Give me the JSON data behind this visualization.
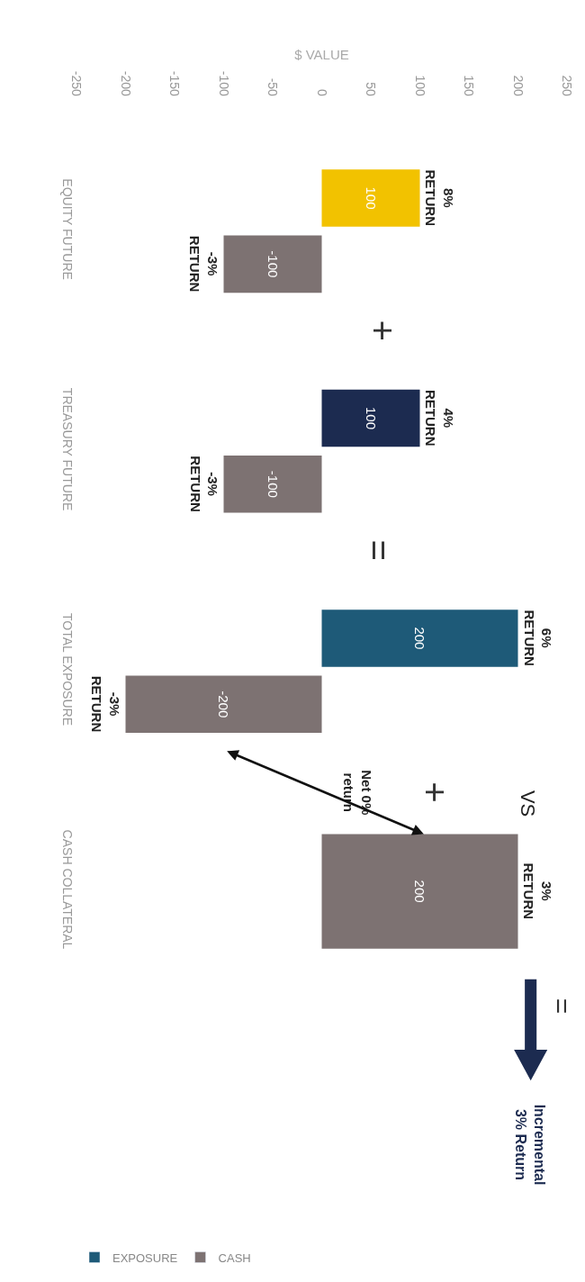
{
  "chart_data": {
    "type": "bar",
    "orientation": "horizontal",
    "xlabel": "$ VALUE",
    "categories": [
      "EQUITY FUTURE",
      "TREASURY FUTURE",
      "TOTAL EXPOSURE",
      "CASH COLLATERAL"
    ],
    "series": [
      {
        "name": "EXPOSURE",
        "color": "#1e5a78",
        "colors": [
          "#f2c200",
          "#1c2b50",
          "#1e5a78",
          null
        ],
        "values": [
          100,
          100,
          200,
          null
        ]
      },
      {
        "name": "CASH",
        "color": "#7d7272",
        "values": [
          -100,
          -100,
          -200,
          200
        ]
      }
    ],
    "xlim": [
      -250,
      250
    ],
    "xticks": [
      -250,
      -200,
      -150,
      -100,
      -50,
      0,
      50,
      100,
      150,
      200,
      250
    ],
    "data_labels": true,
    "legend": "bottom left",
    "annotations": [
      "8%\nRETURN",
      "-3%\nRETURN",
      "4%\nRETURN",
      "-3%\nRETURN",
      "6%\nRETURN",
      "-3%\nRETURN",
      "3%\nRETURN",
      "+",
      "=",
      "+",
      "VS",
      "Net 0%\nreturn",
      "=",
      "Incremental\n3% Return"
    ]
  }
}
